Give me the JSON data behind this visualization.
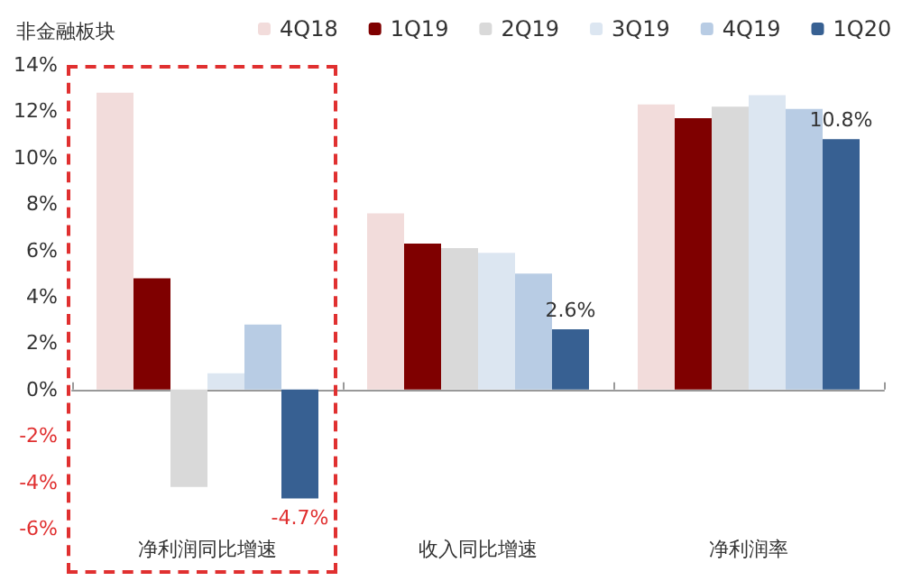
{
  "chart_data": {
    "type": "bar",
    "title": "非金融板块",
    "categories": [
      "净利润同比增速",
      "收入同比增速",
      "净利润率"
    ],
    "series": [
      {
        "name": "4Q18",
        "color": "#f2dcdb",
        "values": [
          12.8,
          7.6,
          12.3
        ]
      },
      {
        "name": "1Q19",
        "color": "#7f0000",
        "values": [
          4.8,
          6.3,
          11.7
        ]
      },
      {
        "name": "2Q19",
        "color": "#d9d9d9",
        "values": [
          -4.2,
          6.1,
          12.2
        ]
      },
      {
        "name": "3Q19",
        "color": "#dce6f1",
        "values": [
          0.7,
          5.9,
          12.7
        ]
      },
      {
        "name": "4Q19",
        "color": "#b8cce4",
        "values": [
          2.8,
          5.0,
          12.1
        ]
      },
      {
        "name": "1Q20",
        "color": "#376092",
        "values": [
          -4.7,
          2.6,
          10.8
        ],
        "value_labels": [
          "-4.7%",
          "2.6%",
          "10.8%"
        ]
      }
    ],
    "ylim": [
      -6,
      14
    ],
    "yticks": [
      {
        "value": -6,
        "label": "-6%"
      },
      {
        "value": -4,
        "label": "-4%"
      },
      {
        "value": -2,
        "label": "-2%"
      },
      {
        "value": 0,
        "label": "0%"
      },
      {
        "value": 2,
        "label": "2%"
      },
      {
        "value": 4,
        "label": "4%"
      },
      {
        "value": 6,
        "label": "6%"
      },
      {
        "value": 8,
        "label": "8%"
      },
      {
        "value": 10,
        "label": "10%"
      },
      {
        "value": 12,
        "label": "12%"
      },
      {
        "value": 14,
        "label": "14%"
      }
    ],
    "legend": "top"
  }
}
